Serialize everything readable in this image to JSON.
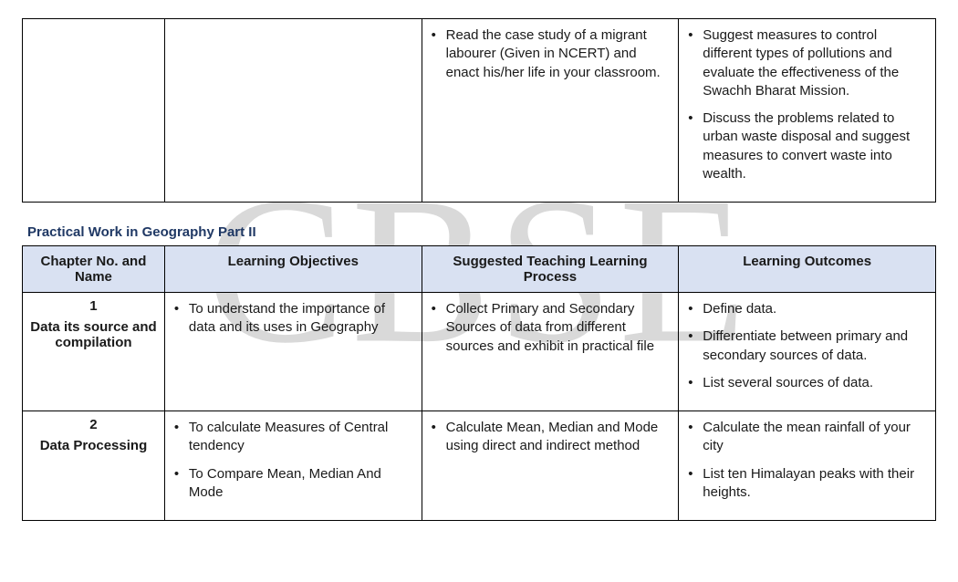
{
  "watermark": "CBSE",
  "top_table": {
    "row": {
      "col1": "",
      "col2": "",
      "col3_items": [
        "Read the case study of a migrant labourer (Given in NCERT) and enact his/her life in your classroom."
      ],
      "col4_items": [
        "Suggest measures to control different types of pollutions and evaluate the effectiveness of the Swachh Bharat Mission.",
        "Discuss the problems related to urban waste disposal and suggest measures to convert waste into wealth."
      ]
    }
  },
  "section_title": "Practical Work in Geography Part II",
  "main_table": {
    "headers": {
      "chapter": "Chapter No. and Name",
      "objectives": "Learning Objectives",
      "process": "Suggested Teaching Learning Process",
      "outcomes": "Learning Outcomes"
    },
    "rows": [
      {
        "chapter_num": "1",
        "chapter_name": "Data its source and compilation",
        "objectives": [
          "To understand the importance of data and its uses in Geography"
        ],
        "process": [
          "Collect Primary and Secondary Sources of data from different sources and exhibit in practical file"
        ],
        "outcomes": [
          "Define data.",
          "Differentiate between primary and secondary sources of data.",
          "List several sources of data."
        ]
      },
      {
        "chapter_num": "2",
        "chapter_name": "Data Processing",
        "objectives": [
          "To calculate Measures of Central tendency",
          "To Compare Mean, Median And Mode"
        ],
        "process": [
          "Calculate Mean, Median and Mode using direct and indirect method"
        ],
        "outcomes": [
          "Calculate the mean rainfall of your city",
          "List ten Himalayan peaks with their heights."
        ]
      }
    ]
  }
}
